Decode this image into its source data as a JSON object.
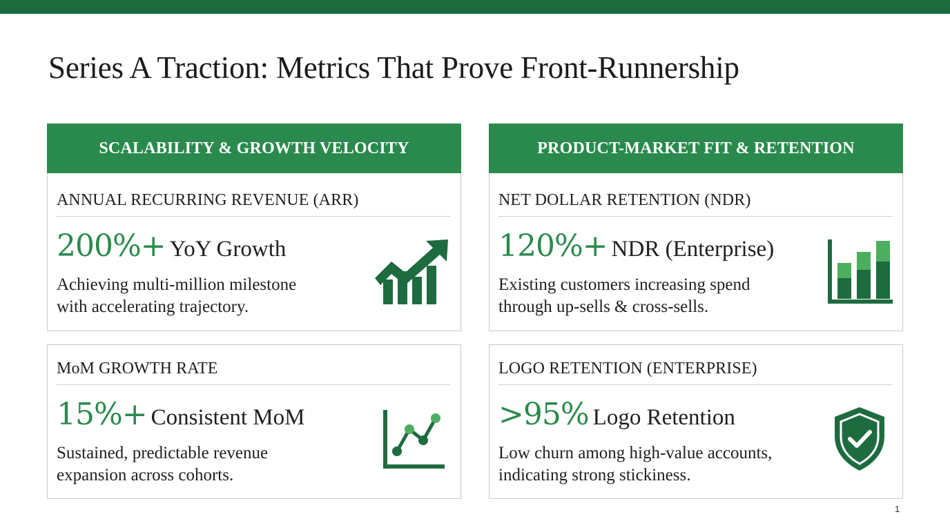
{
  "slide": {
    "title": "Series A Traction: Metrics That Prove Front-Runnership",
    "page_number": "1"
  },
  "colors": {
    "accent": "#2a8a4d",
    "top_bar": "#1e6b3f",
    "icon_dark": "#1e6b3f",
    "icon_light": "#4caf60"
  },
  "columns": [
    {
      "header": "SCALABILITY & GROWTH VELOCITY",
      "cards": [
        {
          "metric": "ANNUAL RECURRING REVENUE (ARR)",
          "value": "200%+",
          "label": "YoY Growth",
          "desc_lines": [
            "Achieving multi-million milestone",
            "with accelerating trajectory."
          ],
          "icon": "growth-bars-arrow-icon"
        },
        {
          "metric": "MoM GROWTH RATE",
          "value": "15%+",
          "label": "Consistent MoM",
          "desc_lines": [
            "Sustained, predictable revenue",
            "expansion across cohorts."
          ],
          "icon": "line-chart-icon"
        }
      ]
    },
    {
      "header": "PRODUCT-MARKET FIT & RETENTION",
      "cards": [
        {
          "metric": "NET DOLLAR RETENTION (NDR)",
          "value": "120%+",
          "label": "NDR (Enterprise)",
          "desc_lines": [
            "Existing customers increasing spend",
            "through up-sells & cross-sells."
          ],
          "icon": "stacked-bar-chart-icon"
        },
        {
          "metric": "LOGO RETENTION (ENTERPRISE)",
          "value": ">95%",
          "label": "Logo Retention",
          "desc_lines": [
            "Low churn among high-value accounts,",
            "indicating strong stickiness."
          ],
          "icon": "shield-check-icon"
        }
      ]
    }
  ]
}
